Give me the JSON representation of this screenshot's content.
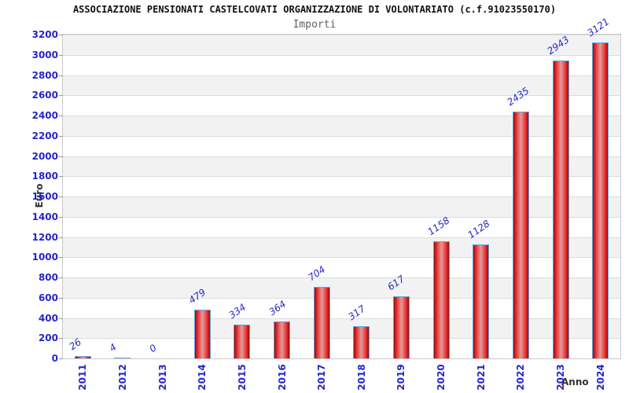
{
  "header": {
    "title": "ASSOCIAZIONE PENSIONATI CASTELCOVATI ORGANIZZAZIONE DI VOLONTARIATO (c.f.91023550170)",
    "subtitle": "Importi"
  },
  "chart_data": {
    "type": "bar",
    "title": "ASSOCIAZIONE PENSIONATI CASTELCOVATI ORGANIZZAZIONE DI VOLONTARIATO (c.f.91023550170)",
    "subtitle": "Importi",
    "categories": [
      "2011",
      "2012",
      "2013",
      "2014",
      "2015",
      "2016",
      "2017",
      "2018",
      "2019",
      "2020",
      "2021",
      "2022",
      "2023",
      "2024"
    ],
    "values": [
      26,
      4,
      0,
      479,
      334,
      364,
      704,
      317,
      617,
      1158,
      1128,
      2435,
      2943,
      3121
    ],
    "xlabel": "Anno",
    "ylabel": "Euro",
    "ylim": [
      0,
      3200
    ],
    "ytick_step": 200,
    "grid": "horizontal gridlines every 200 with alternating gray/white bands",
    "legend_position": "none",
    "bar_labels_rotated": true,
    "x_labels_rotated_90": true
  },
  "colors": {
    "tick_label": "#2626c9",
    "value_label": "#2626c9",
    "bar_border": "#62a5dc",
    "bar_dark_red": "#8f0e0e",
    "bar_red": "#ee4444",
    "bar_highlight": "#dc9b9b",
    "band_gray": "#f2f2f2",
    "gridline": "#dcdcdc",
    "plot_border": "#c9c9c9",
    "title_color": "#111111",
    "subtitle_color": "#5f5f5f",
    "axis_title_color": "#333333"
  }
}
